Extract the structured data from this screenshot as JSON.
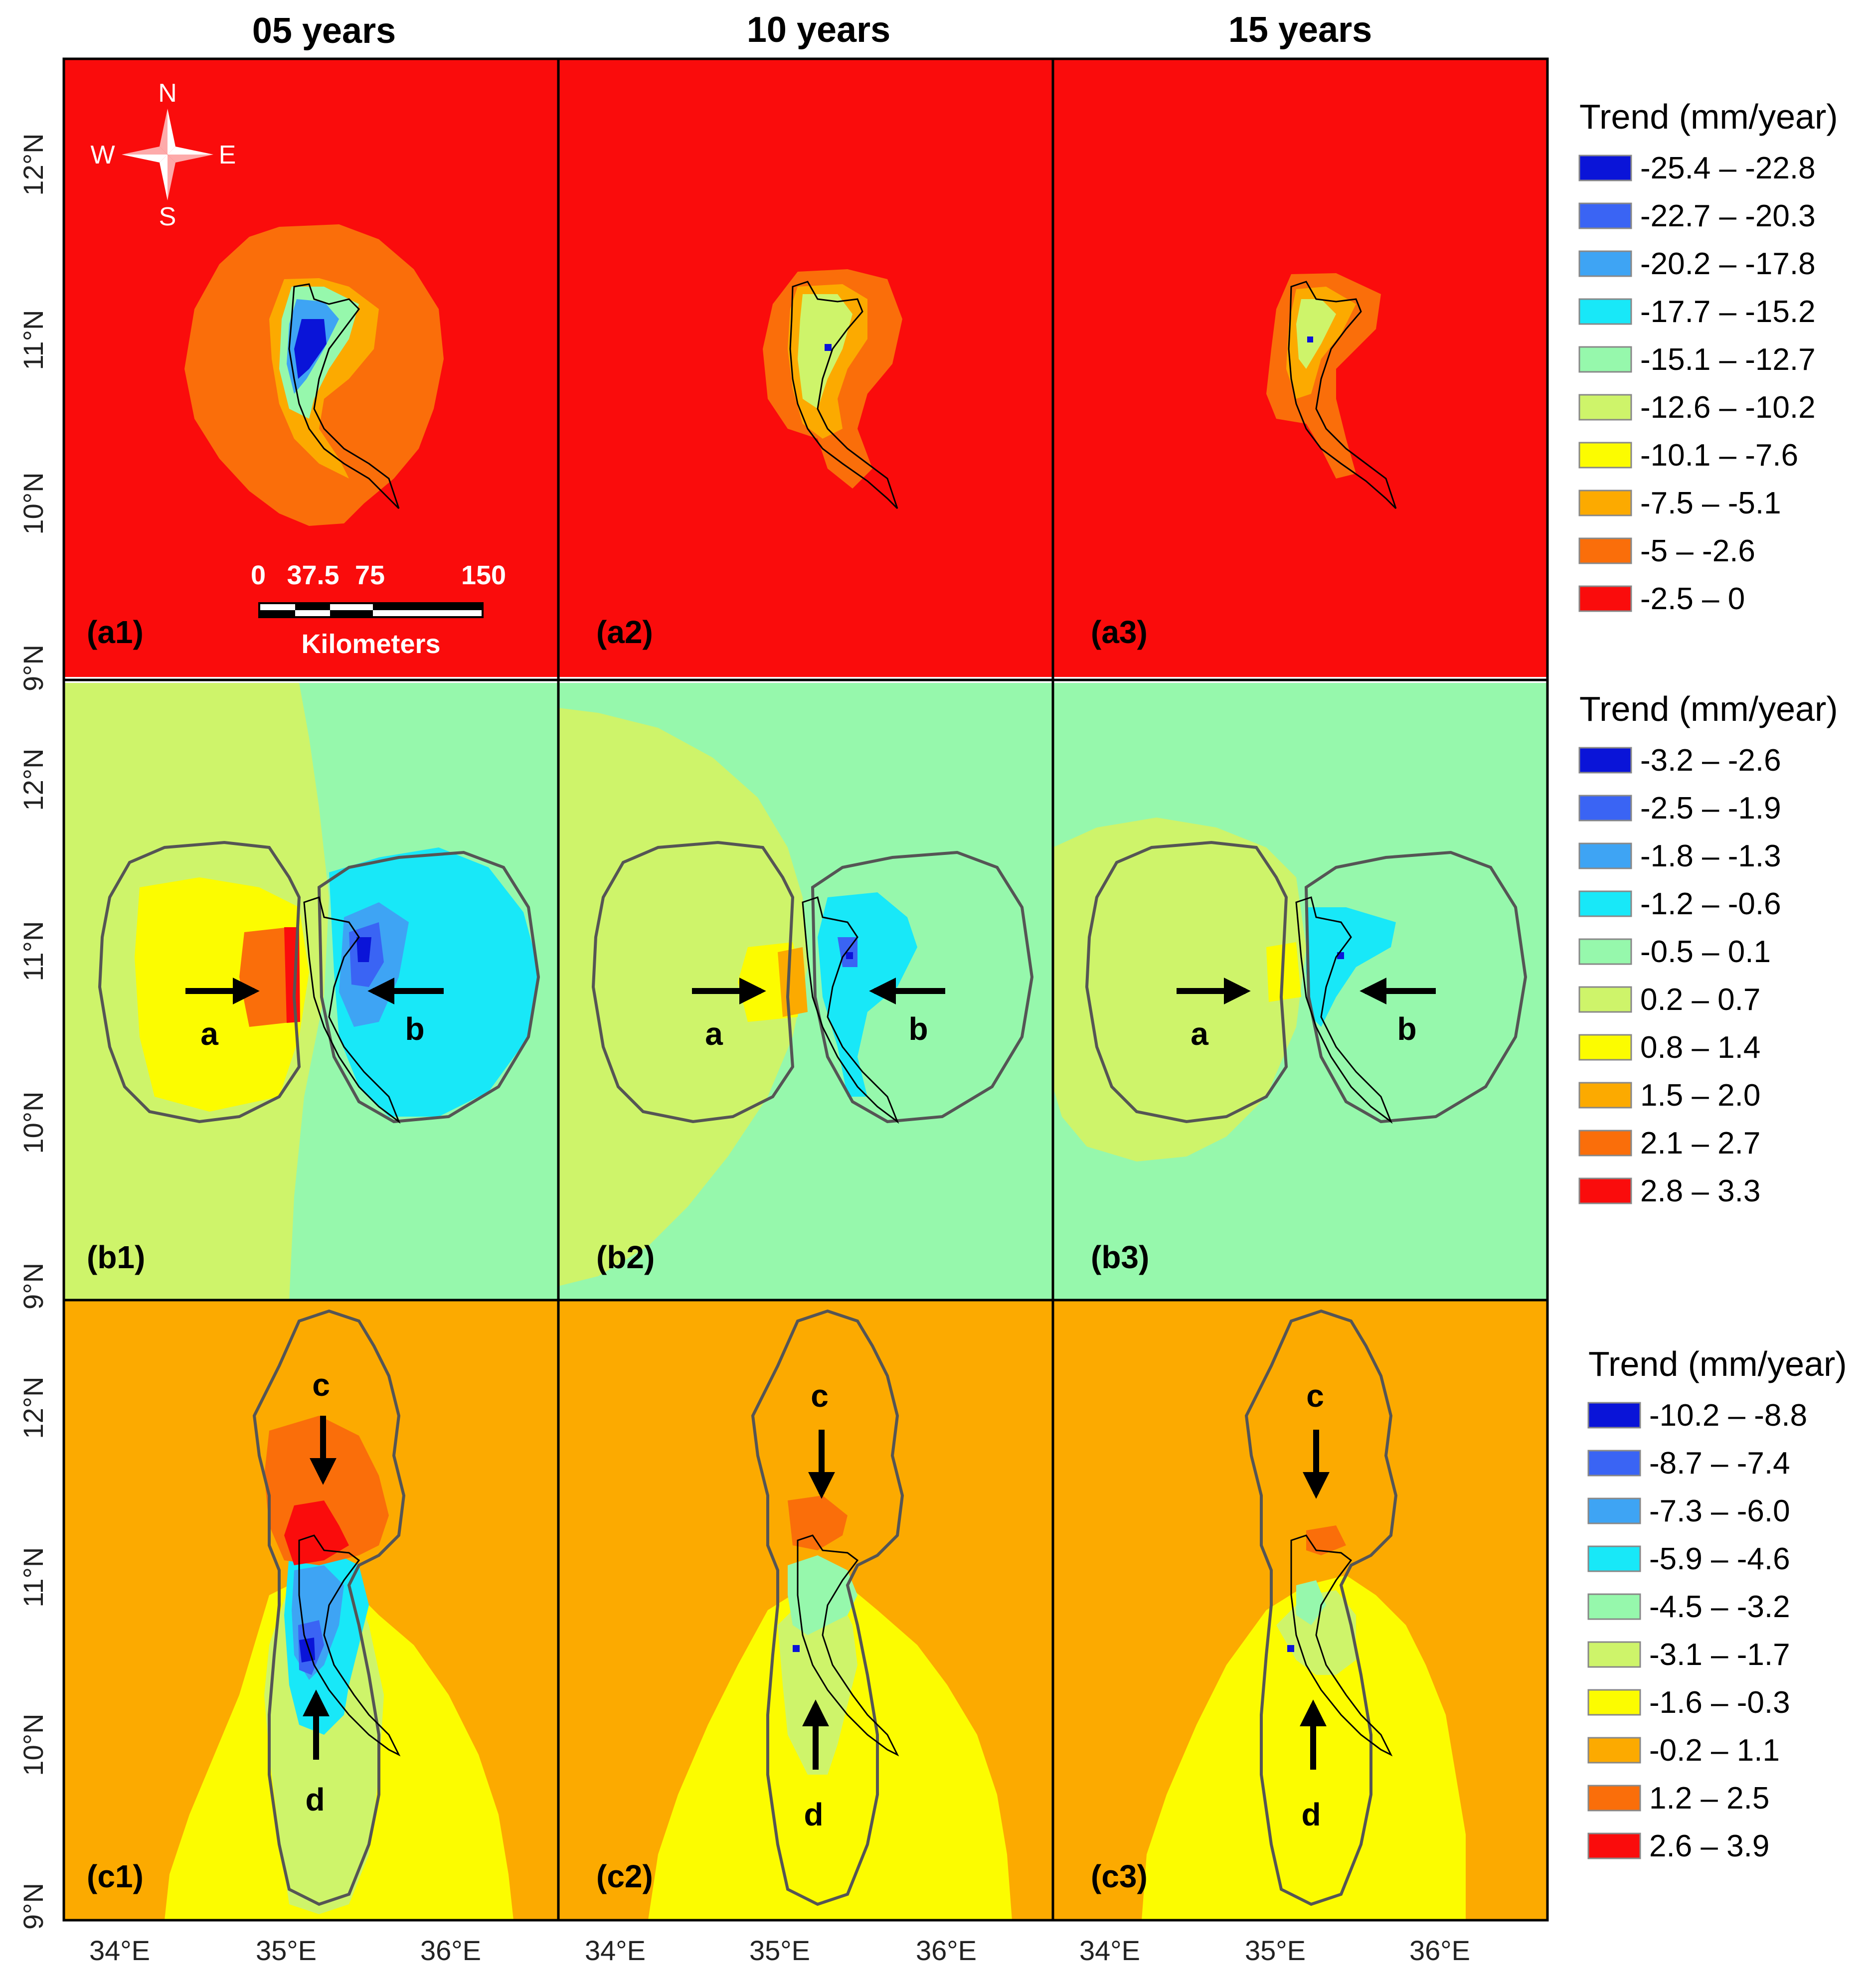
{
  "columns": [
    "05 years",
    "10 years",
    "15 years"
  ],
  "panel_labels": [
    [
      "(a1)",
      "(a2)",
      "(a3)"
    ],
    [
      "(b1)",
      "(b2)",
      "(b3)"
    ],
    [
      "(c1)",
      "(c2)",
      "(c3)"
    ]
  ],
  "axes": {
    "lon_ticks": [
      "34°E",
      "35°E",
      "36°E"
    ],
    "lat_ticks": [
      "12°N",
      "11°N",
      "10°N",
      "9°N"
    ]
  },
  "compass": {
    "n": "N",
    "s": "S",
    "e": "E",
    "w": "W"
  },
  "scale_bar": {
    "labels": [
      "0",
      "37.5",
      "75",
      "150"
    ],
    "unit": "Kilometers"
  },
  "arrow_labels": {
    "a": "a",
    "b": "b",
    "c": "c",
    "d": "d"
  },
  "legends": [
    {
      "title": "Trend (mm/year)",
      "items": [
        {
          "label": "-25.4 – -22.8",
          "color": "#0a14d8"
        },
        {
          "label": "-22.7 – -20.3",
          "color": "#3a64f4"
        },
        {
          "label": "-20.2 – -17.8",
          "color": "#3ea4f4"
        },
        {
          "label": "-17.7 – -15.2",
          "color": "#18e8f8"
        },
        {
          "label": "-15.1 – -12.7",
          "color": "#96f8ac"
        },
        {
          "label": "-12.6 – -10.2",
          "color": "#cef46a"
        },
        {
          "label": "-10.1 – -7.6",
          "color": "#fcfc00"
        },
        {
          "label": "-7.5 – -5.1",
          "color": "#fcaa00"
        },
        {
          "label": "-5 – -2.6",
          "color": "#fa6e0a"
        },
        {
          "label": "-2.5 – 0",
          "color": "#fa0c0c"
        }
      ]
    },
    {
      "title": "Trend (mm/year)",
      "items": [
        {
          "label": "-3.2 – -2.6",
          "color": "#0a14d8"
        },
        {
          "label": "-2.5 – -1.9",
          "color": "#3a64f4"
        },
        {
          "label": "-1.8 – -1.3",
          "color": "#3ea4f4"
        },
        {
          "label": "-1.2 – -0.6",
          "color": "#18e8f8"
        },
        {
          "label": "-0.5 – 0.1",
          "color": "#96f8ac"
        },
        {
          "label": "0.2 – 0.7",
          "color": "#cef46a"
        },
        {
          "label": "0.8 – 1.4",
          "color": "#fcfc00"
        },
        {
          "label": "1.5 – 2.0",
          "color": "#fcaa00"
        },
        {
          "label": "2.1 – 2.7",
          "color": "#fa6e0a"
        },
        {
          "label": "2.8 – 3.3",
          "color": "#fa0c0c"
        }
      ]
    },
    {
      "title": "Trend (mm/year)",
      "items": [
        {
          "label": "-10.2 – -8.8",
          "color": "#0a14d8"
        },
        {
          "label": "-8.7 – -7.4",
          "color": "#3a64f4"
        },
        {
          "label": "-7.3 – -6.0",
          "color": "#3ea4f4"
        },
        {
          "label": "-5.9 – -4.6",
          "color": "#18e8f8"
        },
        {
          "label": "-4.5 – -3.2",
          "color": "#96f8ac"
        },
        {
          "label": "-3.1 – -1.7",
          "color": "#cef46a"
        },
        {
          "label": "-1.6 – -0.3",
          "color": "#fcfc00"
        },
        {
          "label": "-0.2 – 1.1",
          "color": "#fcaa00"
        },
        {
          "label": "1.2 – 2.5",
          "color": "#fa6e0a"
        },
        {
          "label": "2.6 – 3.9",
          "color": "#fa0c0c"
        }
      ]
    }
  ]
}
